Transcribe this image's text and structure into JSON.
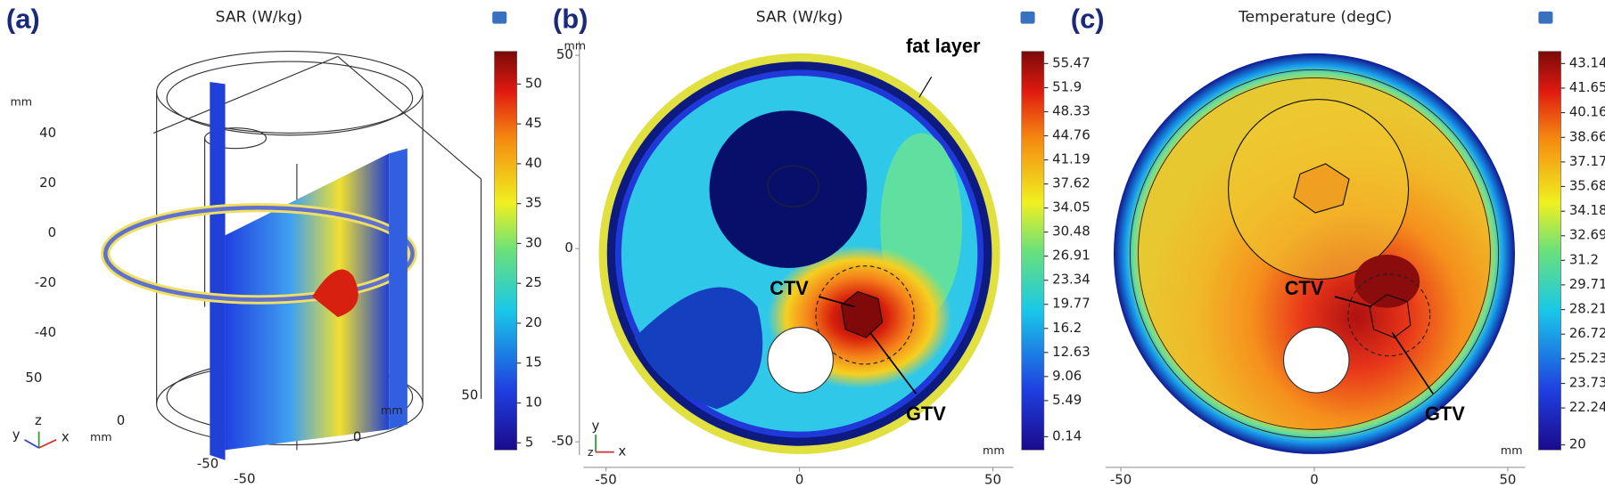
{
  "panels": [
    {
      "label": "(a)",
      "title": "SAR (W/kg)",
      "colorbar": {
        "ticks": [
          50,
          45,
          40,
          35,
          30,
          25,
          20,
          15,
          10,
          5
        ]
      },
      "z_label": "mm",
      "z_ticks": [
        40,
        20,
        0,
        -20,
        -40
      ],
      "y_label": "mm",
      "y_ticks": [
        50,
        0,
        -50
      ],
      "x_label": "mm",
      "x_ticks": [
        -50,
        0,
        50
      ],
      "triad": [
        "y",
        "z",
        "x"
      ]
    },
    {
      "label": "(b)",
      "title": "SAR (W/kg)",
      "colorbar": {
        "ticks": [
          55.47,
          51.9,
          48.33,
          44.76,
          41.19,
          37.62,
          34.05,
          30.48,
          26.91,
          23.34,
          19.77,
          16.2,
          12.63,
          9.06,
          5.49,
          0.14
        ]
      },
      "x_ticks": [
        -50,
        0,
        50
      ],
      "y_ticks": [
        50,
        0,
        -50
      ],
      "y_label": "mm",
      "x_label": "mm",
      "annotations": [
        "fat layer",
        "CTV",
        "GTV"
      ],
      "triad": [
        "y",
        "z",
        "x"
      ]
    },
    {
      "label": "(c)",
      "title": "Temperature (degC)",
      "colorbar": {
        "ticks": [
          43.14,
          41.65,
          40.16,
          38.66,
          37.17,
          35.68,
          34.18,
          32.69,
          31.2,
          29.71,
          28.21,
          26.72,
          25.23,
          23.73,
          22.24,
          20
        ]
      },
      "x_ticks": [
        -50,
        0,
        50
      ],
      "x_label": "mm",
      "annotations": [
        "CTV",
        "GTV"
      ]
    }
  ]
}
